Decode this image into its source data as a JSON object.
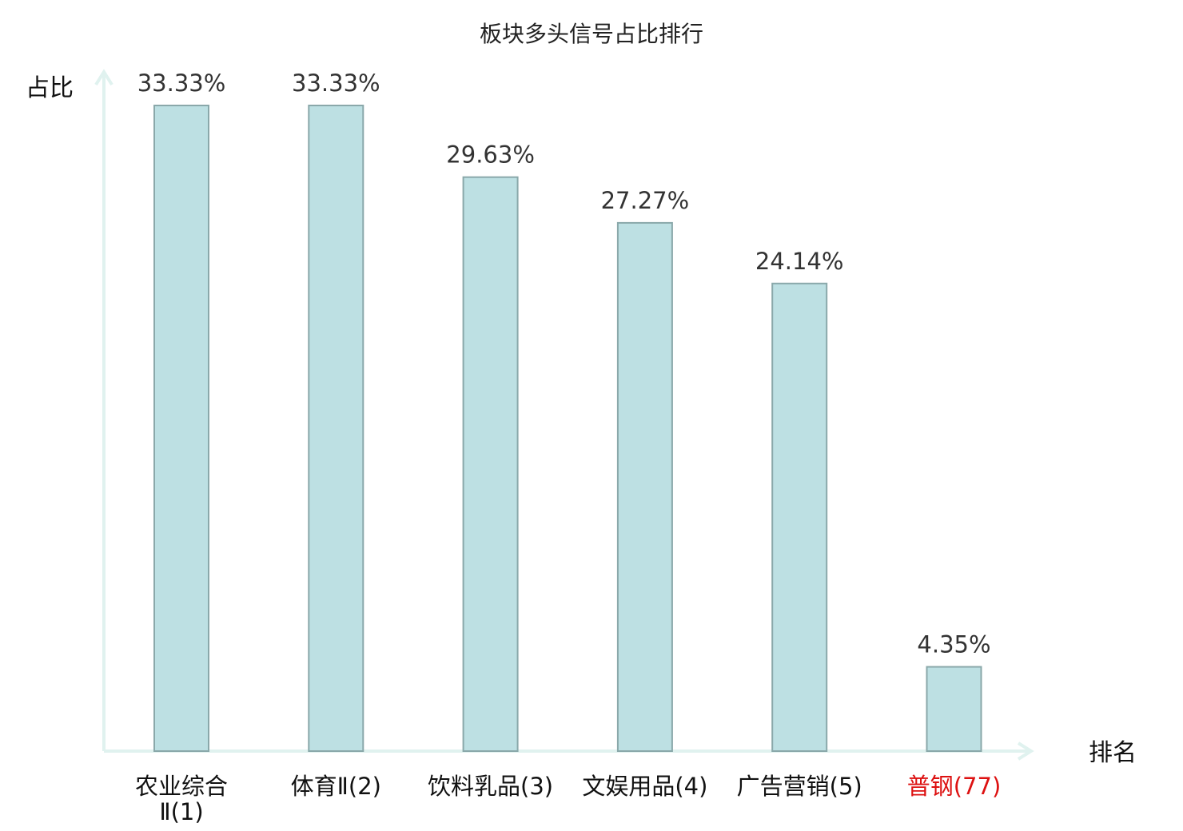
{
  "chart_data": {
    "type": "bar",
    "title": "板块多头信号占比排行",
    "ylabel": "占比",
    "xlabel": "排名",
    "categories": [
      {
        "name": "农业综合",
        "rank_text": "Ⅱ(1)",
        "highlight": false
      },
      {
        "name": "体育Ⅱ",
        "rank_text": "(2)",
        "highlight": false
      },
      {
        "name": "饮料乳品",
        "rank_text": "(3)",
        "highlight": false
      },
      {
        "name": "文娱用品",
        "rank_text": "(4)",
        "highlight": false
      },
      {
        "name": "广告营销",
        "rank_text": "(5)",
        "highlight": false
      },
      {
        "name": "普钢",
        "rank_text": "(77)",
        "highlight": true
      }
    ],
    "values": [
      33.33,
      33.33,
      29.63,
      27.27,
      24.14,
      4.35
    ],
    "value_labels": [
      "33.33%",
      "33.33%",
      "29.63%",
      "27.27%",
      "24.14%",
      "4.35%"
    ],
    "ylim": [
      0,
      35
    ],
    "grid": false,
    "legend": "none",
    "colors": {
      "bar_fill": "#bde0e3",
      "bar_stroke": "#8aa8aa",
      "axis": "#e0f2ef",
      "highlight_label": "#dd1111",
      "value_text": "#333333"
    }
  }
}
